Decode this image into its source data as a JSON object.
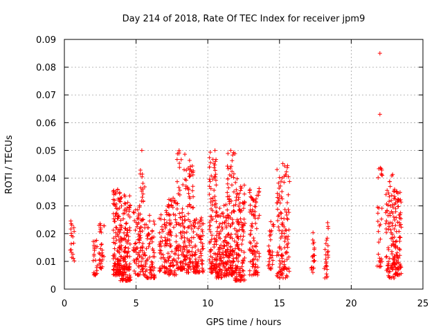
{
  "chart_data": {
    "type": "scatter",
    "title": "Day 214 of 2018, Rate Of TEC Index for receiver jpm9",
    "xlabel": "GPS time / hours",
    "ylabel": "ROTI / TECUs",
    "xlim": [
      0,
      25
    ],
    "ylim": [
      0,
      0.09
    ],
    "xticks": [
      "0",
      "5",
      "10",
      "15",
      "20",
      "25"
    ],
    "yticks": [
      "0",
      "0.01",
      "0.02",
      "0.03",
      "0.04",
      "0.05",
      "0.06",
      "0.07",
      "0.08",
      "0.09"
    ],
    "grid": true,
    "marker": "+",
    "color": "#ff0000",
    "series": [
      {
        "name": "ROTI",
        "clusters": [
          {
            "x": [
              0.4,
              0.7
            ],
            "y": [
              0.01,
              0.026
            ],
            "n": 18
          },
          {
            "x": [
              2.0,
              2.3
            ],
            "y": [
              0.005,
              0.021
            ],
            "n": 25
          },
          {
            "x": [
              2.4,
              2.8
            ],
            "y": [
              0.007,
              0.025
            ],
            "n": 30
          },
          {
            "x": [
              3.4,
              3.9
            ],
            "y": [
              0.005,
              0.036
            ],
            "n": 120
          },
          {
            "x": [
              3.9,
              4.6
            ],
            "y": [
              0.003,
              0.034
            ],
            "n": 140
          },
          {
            "x": [
              4.8,
              5.2
            ],
            "y": [
              0.005,
              0.03
            ],
            "n": 45
          },
          {
            "x": [
              5.2,
              5.6
            ],
            "y": [
              0.005,
              0.044
            ],
            "n": 60
          },
          {
            "x": [
              5.6,
              6.3
            ],
            "y": [
              0.004,
              0.027
            ],
            "n": 70
          },
          {
            "x": [
              6.6,
              7.2
            ],
            "y": [
              0.006,
              0.029
            ],
            "n": 60
          },
          {
            "x": [
              7.2,
              7.8
            ],
            "y": [
              0.005,
              0.033
            ],
            "n": 80
          },
          {
            "x": [
              7.8,
              8.4
            ],
            "y": [
              0.007,
              0.05
            ],
            "n": 90
          },
          {
            "x": [
              8.4,
              9.0
            ],
            "y": [
              0.006,
              0.048
            ],
            "n": 90
          },
          {
            "x": [
              9.0,
              9.7
            ],
            "y": [
              0.006,
              0.026
            ],
            "n": 80
          },
          {
            "x": [
              10.1,
              10.6
            ],
            "y": [
              0.006,
              0.05
            ],
            "n": 100
          },
          {
            "x": [
              10.6,
              11.3
            ],
            "y": [
              0.004,
              0.031
            ],
            "n": 110
          },
          {
            "x": [
              11.3,
              11.9
            ],
            "y": [
              0.005,
              0.05
            ],
            "n": 120
          },
          {
            "x": [
              11.9,
              12.6
            ],
            "y": [
              0.003,
              0.04
            ],
            "n": 130
          },
          {
            "x": [
              12.9,
              13.6
            ],
            "y": [
              0.005,
              0.037
            ],
            "n": 90
          },
          {
            "x": [
              14.2,
              14.6
            ],
            "y": [
              0.007,
              0.025
            ],
            "n": 30
          },
          {
            "x": [
              14.8,
              15.7
            ],
            "y": [
              0.004,
              0.046
            ],
            "n": 120
          },
          {
            "x": [
              17.2,
              17.5
            ],
            "y": [
              0.006,
              0.022
            ],
            "n": 20
          },
          {
            "x": [
              18.1,
              18.4
            ],
            "y": [
              0.004,
              0.024
            ],
            "n": 25
          },
          {
            "x": [
              21.8,
              22.2
            ],
            "y": [
              0.008,
              0.044
            ],
            "n": 30
          },
          {
            "x": [
              22.4,
              23.0
            ],
            "y": [
              0.004,
              0.042
            ],
            "n": 90
          },
          {
            "x": [
              23.0,
              23.5
            ],
            "y": [
              0.005,
              0.036
            ],
            "n": 90
          }
        ],
        "outliers": [
          {
            "x": 22.0,
            "y": 0.085
          },
          {
            "x": 22.0,
            "y": 0.063
          },
          {
            "x": 5.4,
            "y": 0.05
          },
          {
            "x": 8.0,
            "y": 0.05
          },
          {
            "x": 10.5,
            "y": 0.05
          },
          {
            "x": 11.6,
            "y": 0.05
          }
        ]
      }
    ]
  }
}
